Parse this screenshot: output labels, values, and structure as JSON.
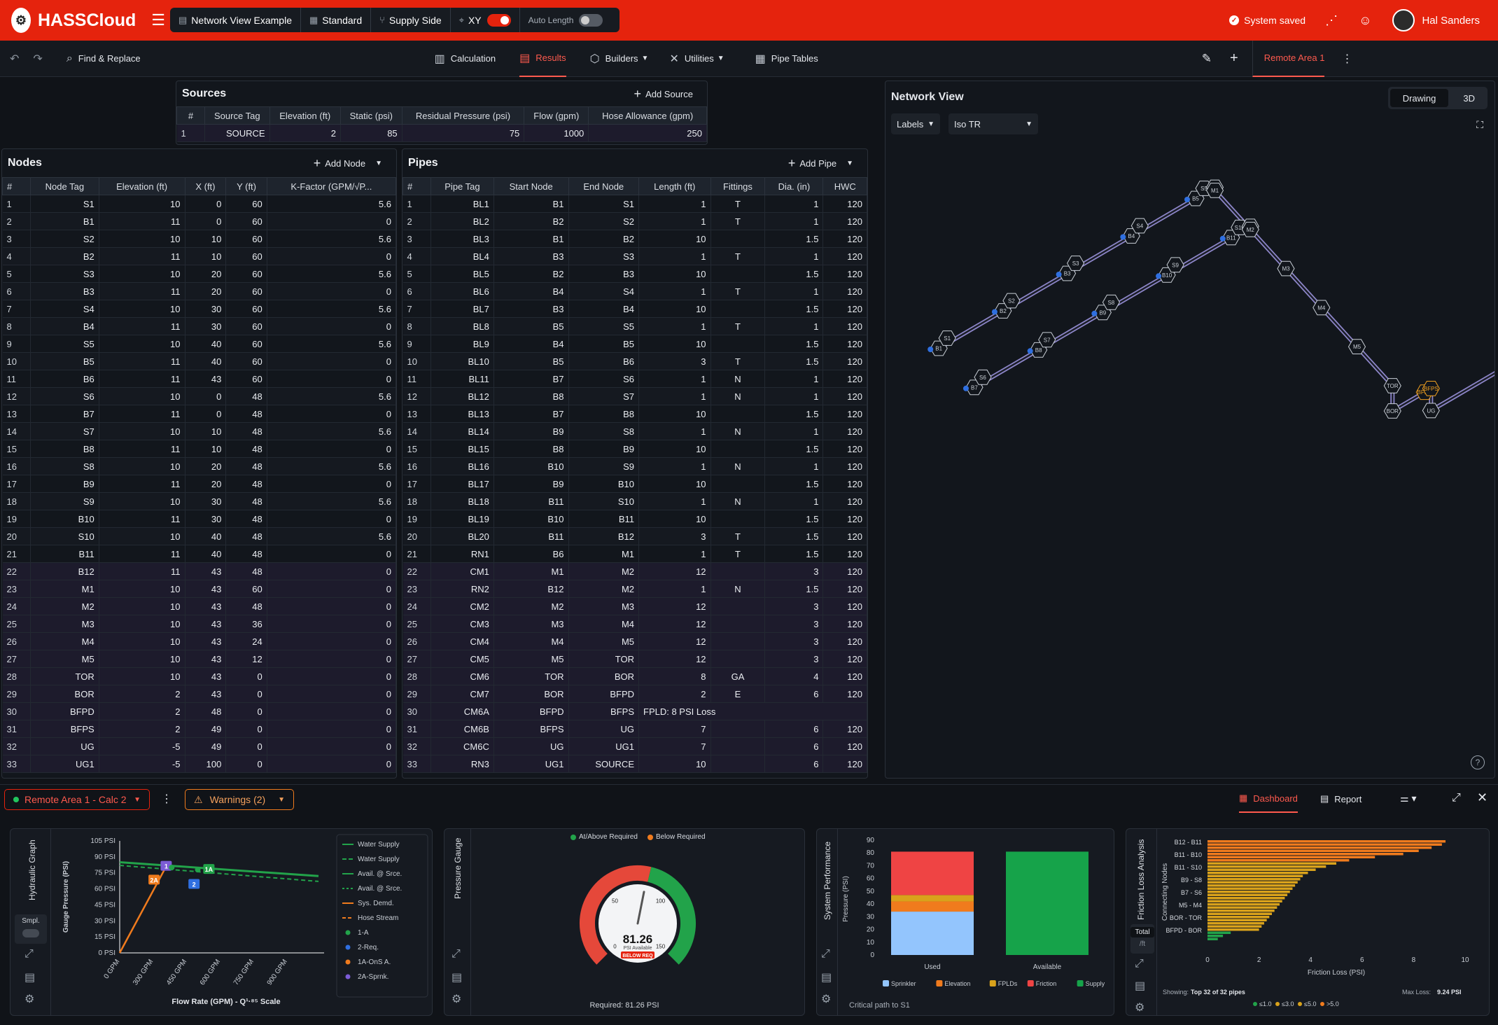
{
  "app": {
    "name": "HASSCloud"
  },
  "project": {
    "name": "Network View Example",
    "mode": "Standard",
    "side": "Supply Side",
    "coord": "XY",
    "auto_length": "Auto Length"
  },
  "header": {
    "status": "System saved",
    "user": "Hal Sanders"
  },
  "toolbar": {
    "find": "Find & Replace",
    "calc": "Calculation",
    "results": "Results",
    "builders": "Builders",
    "utilities": "Utilities",
    "pipe_tables": "Pipe Tables",
    "area": "Remote Area 1"
  },
  "sources": {
    "title": "Sources",
    "add": "Add Source",
    "columns": [
      "#",
      "Source Tag",
      "Elevation (ft)",
      "Static (psi)",
      "Residual Pressure (psi)",
      "Flow (gpm)",
      "Hose Allowance (gpm)"
    ],
    "rows": [
      [
        "1",
        "SOURCE",
        "2",
        "85",
        "75",
        "1000",
        "250"
      ]
    ]
  },
  "nodes": {
    "title": "Nodes",
    "add": "Add Node",
    "columns": [
      "#",
      "Node Tag",
      "Elevation (ft)",
      "X (ft)",
      "Y (ft)",
      "K-Factor (GPM/√P..."
    ],
    "rows": [
      [
        "1",
        "S1",
        "10",
        "0",
        "60",
        "5.6"
      ],
      [
        "2",
        "B1",
        "11",
        "0",
        "60",
        "0"
      ],
      [
        "3",
        "S2",
        "10",
        "10",
        "60",
        "5.6"
      ],
      [
        "4",
        "B2",
        "11",
        "10",
        "60",
        "0"
      ],
      [
        "5",
        "S3",
        "10",
        "20",
        "60",
        "5.6"
      ],
      [
        "6",
        "B3",
        "11",
        "20",
        "60",
        "0"
      ],
      [
        "7",
        "S4",
        "10",
        "30",
        "60",
        "5.6"
      ],
      [
        "8",
        "B4",
        "11",
        "30",
        "60",
        "0"
      ],
      [
        "9",
        "S5",
        "10",
        "40",
        "60",
        "5.6"
      ],
      [
        "10",
        "B5",
        "11",
        "40",
        "60",
        "0"
      ],
      [
        "11",
        "B6",
        "11",
        "43",
        "60",
        "0"
      ],
      [
        "12",
        "S6",
        "10",
        "0",
        "48",
        "5.6"
      ],
      [
        "13",
        "B7",
        "11",
        "0",
        "48",
        "0"
      ],
      [
        "14",
        "S7",
        "10",
        "10",
        "48",
        "5.6"
      ],
      [
        "15",
        "B8",
        "11",
        "10",
        "48",
        "0"
      ],
      [
        "16",
        "S8",
        "10",
        "20",
        "48",
        "5.6"
      ],
      [
        "17",
        "B9",
        "11",
        "20",
        "48",
        "0"
      ],
      [
        "18",
        "S9",
        "10",
        "30",
        "48",
        "5.6"
      ],
      [
        "19",
        "B10",
        "11",
        "30",
        "48",
        "0"
      ],
      [
        "20",
        "S10",
        "10",
        "40",
        "48",
        "5.6"
      ],
      [
        "21",
        "B11",
        "11",
        "40",
        "48",
        "0"
      ],
      [
        "22",
        "B12",
        "11",
        "43",
        "48",
        "0"
      ],
      [
        "23",
        "M1",
        "10",
        "43",
        "60",
        "0"
      ],
      [
        "24",
        "M2",
        "10",
        "43",
        "48",
        "0"
      ],
      [
        "25",
        "M3",
        "10",
        "43",
        "36",
        "0"
      ],
      [
        "26",
        "M4",
        "10",
        "43",
        "24",
        "0"
      ],
      [
        "27",
        "M5",
        "10",
        "43",
        "12",
        "0"
      ],
      [
        "28",
        "TOR",
        "10",
        "43",
        "0",
        "0"
      ],
      [
        "29",
        "BOR",
        "2",
        "43",
        "0",
        "0"
      ],
      [
        "30",
        "BFPD",
        "2",
        "48",
        "0",
        "0"
      ],
      [
        "31",
        "BFPS",
        "2",
        "49",
        "0",
        "0"
      ],
      [
        "32",
        "UG",
        "-5",
        "49",
        "0",
        "0"
      ],
      [
        "33",
        "UG1",
        "-5",
        "100",
        "0",
        "0"
      ]
    ]
  },
  "pipes": {
    "title": "Pipes",
    "add": "Add Pipe",
    "columns": [
      "#",
      "Pipe Tag",
      "Start Node",
      "End Node",
      "Length (ft)",
      "Fittings",
      "Dia. (in)",
      "HWC"
    ],
    "rows": [
      [
        "1",
        "BL1",
        "B1",
        "S1",
        "1",
        "T",
        "1",
        "120"
      ],
      [
        "2",
        "BL2",
        "B2",
        "S2",
        "1",
        "T",
        "1",
        "120"
      ],
      [
        "3",
        "BL3",
        "B1",
        "B2",
        "10",
        "",
        "1.5",
        "120"
      ],
      [
        "4",
        "BL4",
        "B3",
        "S3",
        "1",
        "T",
        "1",
        "120"
      ],
      [
        "5",
        "BL5",
        "B2",
        "B3",
        "10",
        "",
        "1.5",
        "120"
      ],
      [
        "6",
        "BL6",
        "B4",
        "S4",
        "1",
        "T",
        "1",
        "120"
      ],
      [
        "7",
        "BL7",
        "B3",
        "B4",
        "10",
        "",
        "1.5",
        "120"
      ],
      [
        "8",
        "BL8",
        "B5",
        "S5",
        "1",
        "T",
        "1",
        "120"
      ],
      [
        "9",
        "BL9",
        "B4",
        "B5",
        "10",
        "",
        "1.5",
        "120"
      ],
      [
        "10",
        "BL10",
        "B5",
        "B6",
        "3",
        "T",
        "1.5",
        "120"
      ],
      [
        "11",
        "BL11",
        "B7",
        "S6",
        "1",
        "N",
        "1",
        "120"
      ],
      [
        "12",
        "BL12",
        "B8",
        "S7",
        "1",
        "N",
        "1",
        "120"
      ],
      [
        "13",
        "BL13",
        "B7",
        "B8",
        "10",
        "",
        "1.5",
        "120"
      ],
      [
        "14",
        "BL14",
        "B9",
        "S8",
        "1",
        "N",
        "1",
        "120"
      ],
      [
        "15",
        "BL15",
        "B8",
        "B9",
        "10",
        "",
        "1.5",
        "120"
      ],
      [
        "16",
        "BL16",
        "B10",
        "S9",
        "1",
        "N",
        "1",
        "120"
      ],
      [
        "17",
        "BL17",
        "B9",
        "B10",
        "10",
        "",
        "1.5",
        "120"
      ],
      [
        "18",
        "BL18",
        "B11",
        "S10",
        "1",
        "N",
        "1",
        "120"
      ],
      [
        "19",
        "BL19",
        "B10",
        "B11",
        "10",
        "",
        "1.5",
        "120"
      ],
      [
        "20",
        "BL20",
        "B11",
        "B12",
        "3",
        "T",
        "1.5",
        "120"
      ],
      [
        "21",
        "RN1",
        "B6",
        "M1",
        "1",
        "T",
        "1.5",
        "120"
      ],
      [
        "22",
        "CM1",
        "M1",
        "M2",
        "12",
        "",
        "3",
        "120"
      ],
      [
        "23",
        "RN2",
        "B12",
        "M2",
        "1",
        "N",
        "1.5",
        "120"
      ],
      [
        "24",
        "CM2",
        "M2",
        "M3",
        "12",
        "",
        "3",
        "120"
      ],
      [
        "25",
        "CM3",
        "M3",
        "M4",
        "12",
        "",
        "3",
        "120"
      ],
      [
        "26",
        "CM4",
        "M4",
        "M5",
        "12",
        "",
        "3",
        "120"
      ],
      [
        "27",
        "CM5",
        "M5",
        "TOR",
        "12",
        "",
        "3",
        "120"
      ],
      [
        "28",
        "CM6",
        "TOR",
        "BOR",
        "8",
        "GA",
        "4",
        "120"
      ],
      [
        "29",
        "CM7",
        "BOR",
        "BFPD",
        "2",
        "E",
        "6",
        "120"
      ],
      [
        "30",
        "CM6A",
        "BFPD",
        "BFPS",
        "FPLD: 8 PSI Loss",
        "",
        "",
        ""
      ],
      [
        "31",
        "CM6B",
        "BFPS",
        "UG",
        "7",
        "",
        "6",
        "120"
      ],
      [
        "32",
        "CM6C",
        "UG",
        "UG1",
        "7",
        "",
        "6",
        "120"
      ],
      [
        "33",
        "RN3",
        "UG1",
        "SOURCE",
        "10",
        "",
        "6",
        "120"
      ]
    ]
  },
  "network": {
    "title": "Network View",
    "tab_drawing": "Drawing",
    "tab_3d": "3D",
    "labels": "Labels",
    "view": "Iso TR",
    "node_labels": [
      "B1",
      "S1",
      "B2",
      "S2",
      "B3",
      "S3",
      "B4",
      "S4",
      "B5",
      "S5",
      "B6",
      "M1",
      "B7",
      "S6",
      "B8",
      "S7",
      "B9",
      "S8",
      "B10",
      "S9",
      "B11",
      "S10",
      "B12",
      "M2",
      "M3",
      "M4",
      "M5",
      "TOR",
      "BOR",
      "BFPD",
      "BFPS",
      "UG",
      "SOURCE",
      "UG1"
    ]
  },
  "bottom": {
    "calc": "Remote Area 1 - Calc 2",
    "warnings": "Warnings (2)",
    "dashboard": "Dashboard",
    "report": "Report"
  },
  "hydraulic": {
    "title": "Hydraulic Graph",
    "smpl": "Smpl.",
    "ylabel": "Gauge Pressure (PSI)",
    "xlabel": "Flow Rate (GPM) - Q¹·⁸⁵ Scale",
    "yticks": [
      "105 PSI",
      "90 PSI",
      "75 PSI",
      "60 PSI",
      "45 PSI",
      "30 PSI",
      "15 PSI",
      "0 PSI"
    ],
    "xticks": [
      "0 GPM",
      "300 GPM",
      "450 GPM",
      "600 GPM",
      "750 GPM",
      "900 GPM"
    ],
    "legend": [
      "Water Supply",
      "Water Supply",
      "Avail. @ Srce.",
      "Avail. @ Srce.",
      "Sys. Demd.",
      "Hose Stream",
      "1-A",
      "2-Req.",
      "1A-OnS A.",
      "2A-Sprnk."
    ],
    "markers": [
      "1",
      "2A",
      "1A",
      "2"
    ]
  },
  "gauge": {
    "title": "Pressure Gauge",
    "legend_ok": "At/Above Required",
    "legend_low": "Below Required",
    "value": "81.26",
    "unit": "PSI Available",
    "badge": "BELOW REQ",
    "required": "Required: 81.26 PSI",
    "ticks": [
      "0",
      "50",
      "100",
      "150"
    ]
  },
  "performance": {
    "title": "System Performance",
    "ylabel": "Pressure (PSI)",
    "yticks": [
      "90",
      "80",
      "70",
      "60",
      "50",
      "40",
      "30",
      "20",
      "10",
      "0"
    ],
    "bars": [
      "Used",
      "Available"
    ],
    "legend": [
      "Sprinkler",
      "Elevation",
      "FPLDs",
      "Friction",
      "Supply"
    ],
    "footer": "Critical path to S1"
  },
  "friction": {
    "title": "Friction Loss Analysis",
    "ylabel": "Connecting Nodes",
    "xlabel": "Friction Loss (PSI)",
    "total": "Total",
    "perft": "/ft",
    "labels": [
      "B12 - B11",
      "B11 - B10",
      "B11 - S10",
      "B9 - S8",
      "B7 - S6",
      "M5 - M4",
      "BOR - TOR",
      "BFPD - BOR"
    ],
    "xticks": [
      "0",
      "2",
      "4",
      "6",
      "8",
      "10"
    ],
    "showing_label": "Showing:",
    "showing": "Top 32 of 32 pipes",
    "max_label": "Max Loss:",
    "max": "9.24 PSI",
    "legend": [
      "≤1.0",
      "≤3.0",
      "≤5.0",
      ">5.0"
    ],
    "bars": [
      9.24,
      9.1,
      8.7,
      8.2,
      7.6,
      6.5,
      5.5,
      5.0,
      4.6,
      4.2,
      3.9,
      3.7,
      3.6,
      3.5,
      3.4,
      3.3,
      3.2,
      3.1,
      3.0,
      2.9,
      2.8,
      2.7,
      2.6,
      2.5,
      2.4,
      2.3,
      2.2,
      2.1,
      2.0,
      0.9,
      0.6,
      0.4
    ]
  },
  "colors": {
    "accent": "#e5230d",
    "green": "#22a34a",
    "orange": "#f07b1d",
    "blue": "#2f6fe0",
    "purple": "#7c5cd6"
  }
}
